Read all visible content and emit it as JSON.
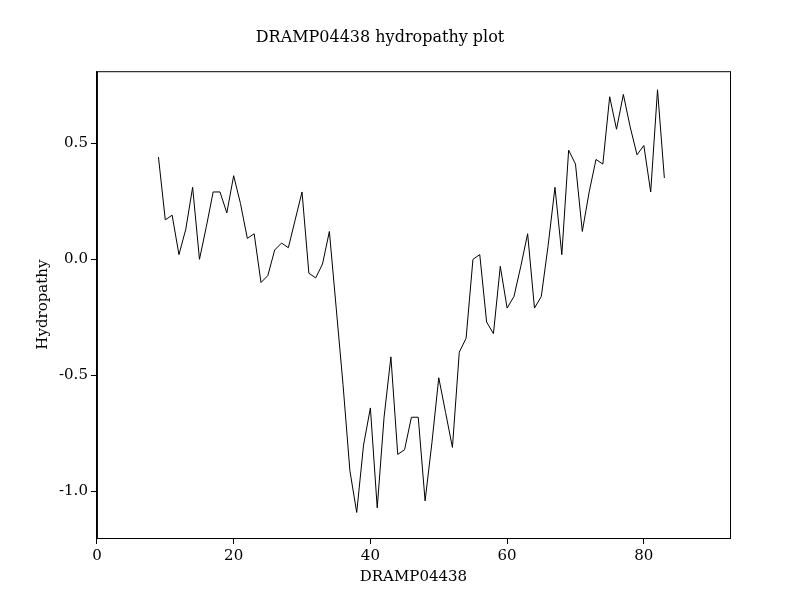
{
  "chart_data": {
    "type": "line",
    "title": "DRAMP04438 hydropathy plot",
    "x_label": "DRAMP04438",
    "y_label": "Hydropathy",
    "x": [
      9,
      10,
      11,
      12,
      13,
      14,
      15,
      16,
      17,
      18,
      19,
      20,
      21,
      22,
      23,
      24,
      25,
      26,
      27,
      28,
      29,
      30,
      31,
      32,
      33,
      34,
      35,
      36,
      37,
      38,
      39,
      40,
      41,
      42,
      43,
      44,
      45,
      46,
      47,
      48,
      49,
      50,
      51,
      52,
      53,
      54,
      55,
      56,
      57,
      58,
      59,
      60,
      61,
      62,
      63,
      64,
      65,
      66,
      67,
      68,
      69,
      70,
      71,
      72,
      73,
      74,
      75,
      76,
      77,
      78,
      79,
      80,
      81,
      82,
      83
    ],
    "values": [
      0.44,
      0.17,
      0.19,
      0.02,
      0.13,
      0.31,
      0.0,
      0.14,
      0.29,
      0.29,
      0.2,
      0.36,
      0.24,
      0.09,
      0.11,
      -0.1,
      -0.07,
      0.04,
      0.07,
      0.05,
      0.17,
      0.29,
      -0.06,
      -0.08,
      -0.02,
      0.12,
      -0.21,
      -0.54,
      -0.91,
      -1.09,
      -0.8,
      -0.64,
      -1.07,
      -0.68,
      -0.42,
      -0.84,
      -0.82,
      -0.68,
      -0.68,
      -1.04,
      -0.79,
      -0.51,
      -0.66,
      -0.81,
      -0.4,
      -0.34,
      0.0,
      0.02,
      -0.27,
      -0.32,
      -0.03,
      -0.21,
      -0.16,
      -0.03,
      0.11,
      -0.21,
      -0.16,
      0.06,
      0.31,
      0.02,
      0.47,
      0.41,
      0.12,
      0.29,
      0.43,
      0.41,
      0.7,
      0.56,
      0.71,
      0.57,
      0.45,
      0.49,
      0.29,
      0.73,
      0.35
    ],
    "color": "#000000",
    "xlim": [
      0,
      92.6
    ],
    "xticks": [
      0,
      20,
      40,
      60,
      80
    ],
    "ylim": [
      -1.2,
      0.81
    ],
    "yticks": [
      {
        "value": -1,
        "label": "-1.0"
      },
      {
        "value": -0.5,
        "label": "-0.5"
      },
      {
        "value": 0,
        "label": "0.0"
      },
      {
        "value": 0.5,
        "label": "0.5"
      }
    ],
    "grid": false
  }
}
